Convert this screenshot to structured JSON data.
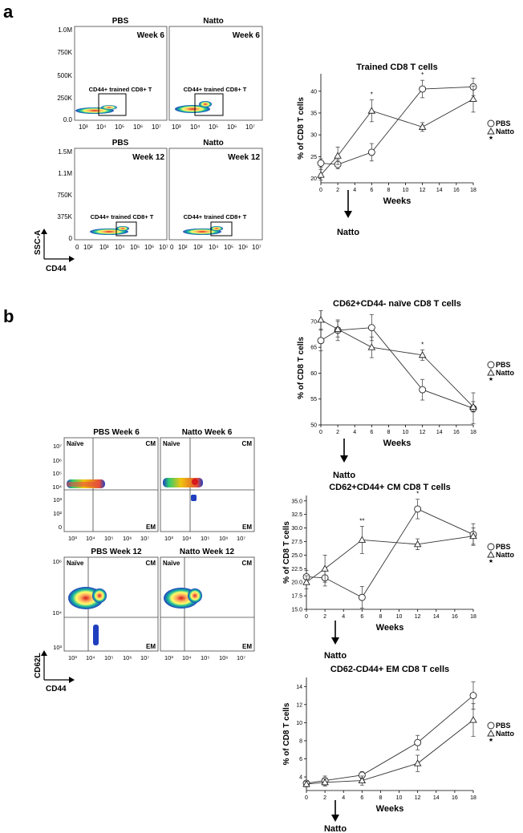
{
  "panel_a": {
    "letter": "a",
    "flow": {
      "y_ticks_top": [
        "1.0M",
        "750K",
        "500K",
        "250K",
        "0.0"
      ],
      "y_ticks_bottom": [
        "1.5M",
        "1.1M",
        "750K",
        "375K",
        "0"
      ],
      "x_ticks_top": [
        "10³",
        "10⁴",
        "10⁵",
        "10⁶",
        "10⁷"
      ],
      "x_ticks_bottom": [
        "0",
        "10²",
        "10³",
        "10⁴",
        "10⁵",
        "10⁶",
        "10⁷"
      ],
      "plots": [
        {
          "group": "PBS",
          "week": "Week 6",
          "gate": "CD44+ trained CD8+ T"
        },
        {
          "group": "Natto",
          "week": "Week 6",
          "gate": "CD44+ trained CD8+ T"
        },
        {
          "group": "PBS",
          "week": "Week 12",
          "gate": "CD44+ trained CD8+ T"
        },
        {
          "group": "Natto",
          "week": "Week 12",
          "gate": "CD44+ trained CD8+ T"
        }
      ],
      "y_axis": "SSC-A",
      "x_axis": "CD44"
    },
    "arrow_label": "Natto"
  },
  "panel_b": {
    "letter": "b",
    "flow": {
      "y_ticks_top": [
        "10⁷",
        "10⁶",
        "10⁵",
        "10⁴",
        "10³",
        "10²",
        "0"
      ],
      "y_ticks_bottom": [
        "10⁶",
        "10⁴",
        "10³"
      ],
      "x_ticks": [
        "10³",
        "10⁴",
        "10⁵",
        "10⁶",
        "10⁷"
      ],
      "plots": [
        {
          "title": "PBS Week 6"
        },
        {
          "title": "Natto Week 6"
        },
        {
          "title": "PBS Week 12"
        },
        {
          "title": "Natto Week 12"
        }
      ],
      "quadrant_naive": "Naïve",
      "quadrant_cm": "CM",
      "quadrant_em": "EM",
      "y_axis": "CD62L",
      "x_axis": "CD44"
    },
    "arrow_label": "Natto"
  },
  "chart_data": [
    {
      "type": "line",
      "title": "Trained CD8 T cells",
      "xlabel": "Weeks",
      "ylabel": "% of CD8 T cells",
      "x": [
        0,
        2,
        6,
        12,
        18
      ],
      "x_ticks": [
        0,
        2,
        4,
        6,
        8,
        10,
        12,
        14,
        16,
        18
      ],
      "xlim": [
        0,
        18
      ],
      "ylim": [
        19,
        44
      ],
      "y_ticks": [
        20,
        25,
        30,
        35,
        40
      ],
      "y_tick_labels": [
        "20",
        "25",
        "30",
        "35",
        "40"
      ],
      "series": [
        {
          "name": "PBS",
          "marker": "circle",
          "values": [
            23.5,
            23.2,
            26.0,
            40.5,
            41.0
          ],
          "errors": [
            1.0,
            1.0,
            2.0,
            2.0,
            2.0
          ]
        },
        {
          "name": "Natto",
          "marker": "triangle",
          "values": [
            20.8,
            25.2,
            35.5,
            31.8,
            38.2
          ],
          "errors": [
            1.2,
            2.0,
            2.5,
            1.0,
            3.0
          ]
        }
      ],
      "significance": [
        {
          "x": 6,
          "label": "*"
        },
        {
          "x": 12,
          "label": "*"
        }
      ],
      "legend_note": "★"
    },
    {
      "type": "line",
      "title": "CD62+CD44- naïve CD8 T cells",
      "xlabel": "Weeks",
      "ylabel": "% of CD8 T cells",
      "x": [
        0,
        2,
        6,
        12,
        18
      ],
      "x_ticks": [
        0,
        2,
        4,
        6,
        8,
        10,
        12,
        14,
        16,
        18
      ],
      "xlim": [
        0,
        18
      ],
      "ylim": [
        50,
        72
      ],
      "y_ticks": [
        50,
        55,
        60,
        65,
        70
      ],
      "y_tick_labels": [
        "50",
        "55",
        "60",
        "65",
        "70"
      ],
      "series": [
        {
          "name": "PBS",
          "marker": "circle",
          "values": [
            66.3,
            68.3,
            68.8,
            56.8,
            53.2
          ],
          "errors": [
            2.0,
            2.0,
            2.5,
            2.0,
            3.0
          ]
        },
        {
          "name": "Natto",
          "marker": "triangle",
          "values": [
            70.3,
            68.5,
            65.0,
            63.5,
            53.5
          ],
          "errors": [
            1.8,
            1.5,
            2.0,
            1.0,
            1.0
          ]
        }
      ],
      "significance": [
        {
          "x": 12,
          "label": "*"
        }
      ],
      "legend_note": "★"
    },
    {
      "type": "line",
      "title": "CD62+CD44+ CM CD8 T cells",
      "xlabel": "Weeks",
      "ylabel": "% of CD8 T cells",
      "x": [
        0,
        2,
        6,
        12,
        18
      ],
      "x_ticks": [
        0,
        2,
        4,
        6,
        8,
        10,
        12,
        14,
        16,
        18
      ],
      "xlim": [
        0,
        18
      ],
      "ylim": [
        15,
        36
      ],
      "y_ticks": [
        15,
        17.5,
        20,
        22.5,
        25,
        27.5,
        30,
        32.5,
        35
      ],
      "y_tick_labels": [
        "15.0",
        "17.5",
        "20.0",
        "22.5",
        "25.0",
        "27.5",
        "30.0",
        "32.5",
        "35.0"
      ],
      "series": [
        {
          "name": "PBS",
          "marker": "circle",
          "values": [
            21.0,
            20.8,
            17.2,
            33.5,
            28.8
          ],
          "errors": [
            1.2,
            1.5,
            2.0,
            1.8,
            2.0
          ]
        },
        {
          "name": "Natto",
          "marker": "triangle",
          "values": [
            20.0,
            22.5,
            27.8,
            27.0,
            28.5
          ],
          "errors": [
            1.2,
            2.5,
            2.5,
            1.0,
            1.5
          ]
        }
      ],
      "significance": [
        {
          "x": 6,
          "label": "**"
        },
        {
          "x": 12,
          "label": "*"
        }
      ],
      "legend_note": "★"
    },
    {
      "type": "line",
      "title": "CD62-CD44+ EM CD8 T cells",
      "xlabel": "Weeks",
      "ylabel": "% of CD8 T cells",
      "x": [
        0,
        2,
        6,
        12,
        18
      ],
      "x_ticks": [
        0,
        2,
        4,
        6,
        8,
        10,
        12,
        14,
        16,
        18
      ],
      "xlim": [
        0,
        18
      ],
      "ylim": [
        2.5,
        15
      ],
      "y_ticks": [
        4,
        6,
        8,
        10,
        12,
        14
      ],
      "y_tick_labels": [
        "4",
        "6",
        "8",
        "10",
        "12",
        "14"
      ],
      "series": [
        {
          "name": "PBS",
          "marker": "circle",
          "values": [
            3.3,
            3.6,
            4.2,
            7.8,
            13.0
          ],
          "errors": [
            0.3,
            0.5,
            0.4,
            0.8,
            1.5
          ]
        },
        {
          "name": "Natto",
          "marker": "triangle",
          "values": [
            3.2,
            3.4,
            3.6,
            5.5,
            10.3
          ],
          "errors": [
            0.3,
            0.4,
            0.5,
            0.9,
            1.8
          ]
        }
      ],
      "significance": [],
      "legend_note": "★"
    }
  ]
}
